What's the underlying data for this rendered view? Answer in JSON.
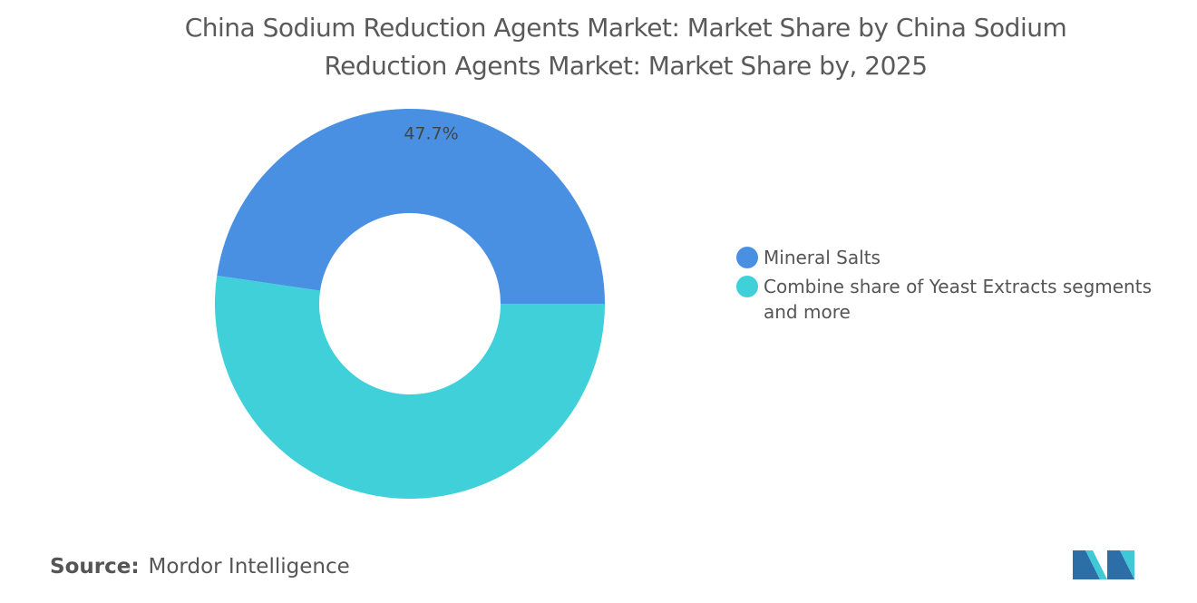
{
  "chart_data": {
    "type": "donut",
    "title": "China Sodium Reduction Agents Market: Market Share by China Sodium Reduction Agents Market: Market Share by, 2025",
    "categories": [
      "Mineral Salts",
      "Combine share of Yeast Extracts segments and more"
    ],
    "values": [
      47.7,
      52.3
    ],
    "value_labels": [
      "47.7%",
      null
    ],
    "colors": [
      "#4a90e2",
      "#3fd0d9"
    ],
    "legend": "right"
  },
  "source_label": "Source:",
  "source": "Mordor Intelligence"
}
